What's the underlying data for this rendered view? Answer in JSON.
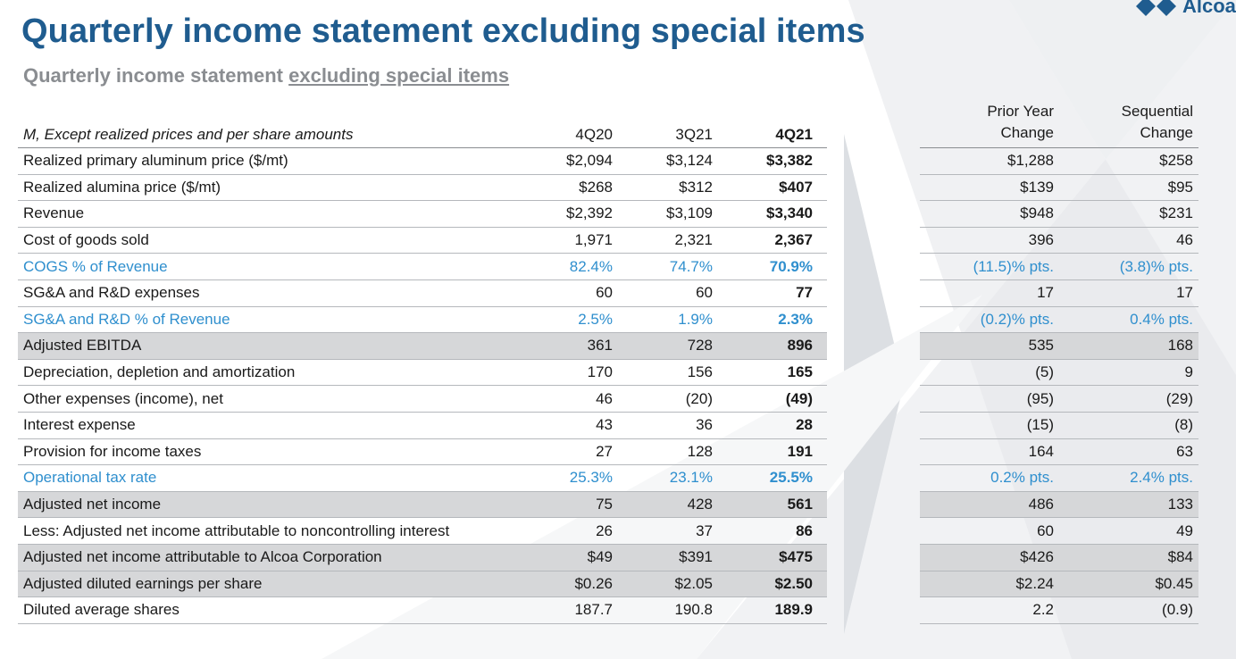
{
  "title": "Quarterly income statement excluding special items",
  "subtitle_prefix": "Quarterly income statement ",
  "subtitle_underlined": "excluding special items",
  "logo_text": "Alcoa",
  "colors": {
    "title": "#1f5c8f",
    "accent_blue": "#2f8fce",
    "shaded_row": "#d6d7d9",
    "subtitle_gray": "#8a8d91"
  },
  "table": {
    "header": {
      "label": "M, Except realized prices and per share amounts",
      "c1": "4Q20",
      "c2": "3Q21",
      "c3": "4Q21"
    },
    "rows": [
      {
        "label": "Realized primary aluminum price ($/mt)",
        "c1": "$2,094",
        "c2": "$3,124",
        "c3": "$3,382"
      },
      {
        "label": "Realized alumina price ($/mt)",
        "c1": "$268",
        "c2": "$312",
        "c3": "$407"
      },
      {
        "label": "Revenue",
        "c1": "$2,392",
        "c2": "$3,109",
        "c3": "$3,340"
      },
      {
        "label": "Cost of goods sold",
        "c1": "1,971",
        "c2": "2,321",
        "c3": "2,367"
      },
      {
        "label": "COGS % of Revenue",
        "c1": "82.4%",
        "c2": "74.7%",
        "c3": "70.9%"
      },
      {
        "label": "SG&A and R&D expenses",
        "c1": "60",
        "c2": "60",
        "c3": "77"
      },
      {
        "label": "SG&A and R&D % of Revenue",
        "c1": "2.5%",
        "c2": "1.9%",
        "c3": "2.3%"
      },
      {
        "label": "Adjusted EBITDA",
        "c1": "361",
        "c2": "728",
        "c3": "896"
      },
      {
        "label": "Depreciation, depletion and amortization",
        "c1": "170",
        "c2": "156",
        "c3": "165"
      },
      {
        "label": "Other expenses (income), net",
        "c1": "46",
        "c2": "(20)",
        "c3": "(49)"
      },
      {
        "label": "Interest expense",
        "c1": "43",
        "c2": "36",
        "c3": "28"
      },
      {
        "label": "Provision for income taxes",
        "c1": "27",
        "c2": "128",
        "c3": "191"
      },
      {
        "label": "Operational tax rate",
        "c1": "25.3%",
        "c2": "23.1%",
        "c3": "25.5%"
      },
      {
        "label": "Adjusted net income",
        "c1": "75",
        "c2": "428",
        "c3": "561"
      },
      {
        "label": "Less: Adjusted net income attributable to noncontrolling interest",
        "c1": "26",
        "c2": "37",
        "c3": "86"
      },
      {
        "label": "Adjusted net income attributable to Alcoa Corporation",
        "c1": "$49",
        "c2": "$391",
        "c3": "$475"
      },
      {
        "label": "Adjusted diluted earnings per share",
        "c1": "$0.26",
        "c2": "$2.05",
        "c3": "$2.50"
      },
      {
        "label": "Diluted average shares",
        "c1": "187.7",
        "c2": "190.8",
        "c3": "189.9"
      }
    ]
  },
  "changes": {
    "header": {
      "prior_line1": "Prior Year",
      "prior_line2": "Change",
      "seq_line1": "Sequential",
      "seq_line2": "Change"
    },
    "rows": [
      {
        "prior": "$1,288",
        "seq": "$258"
      },
      {
        "prior": "$139",
        "seq": "$95"
      },
      {
        "prior": "$948",
        "seq": "$231"
      },
      {
        "prior": "396",
        "seq": "46"
      },
      {
        "prior": "(11.5)% pts.",
        "seq": "(3.8)% pts."
      },
      {
        "prior": "17",
        "seq": "17"
      },
      {
        "prior": "(0.2)% pts.",
        "seq": "0.4% pts."
      },
      {
        "prior": "535",
        "seq": "168"
      },
      {
        "prior": "(5)",
        "seq": "9"
      },
      {
        "prior": "(95)",
        "seq": "(29)"
      },
      {
        "prior": "(15)",
        "seq": "(8)"
      },
      {
        "prior": "164",
        "seq": "63"
      },
      {
        "prior": "0.2% pts.",
        "seq": "2.4% pts."
      },
      {
        "prior": "486",
        "seq": "133"
      },
      {
        "prior": "60",
        "seq": "49"
      },
      {
        "prior": "$426",
        "seq": "$84"
      },
      {
        "prior": "$2.24",
        "seq": "$0.45"
      },
      {
        "prior": "2.2",
        "seq": "(0.9)"
      }
    ]
  }
}
